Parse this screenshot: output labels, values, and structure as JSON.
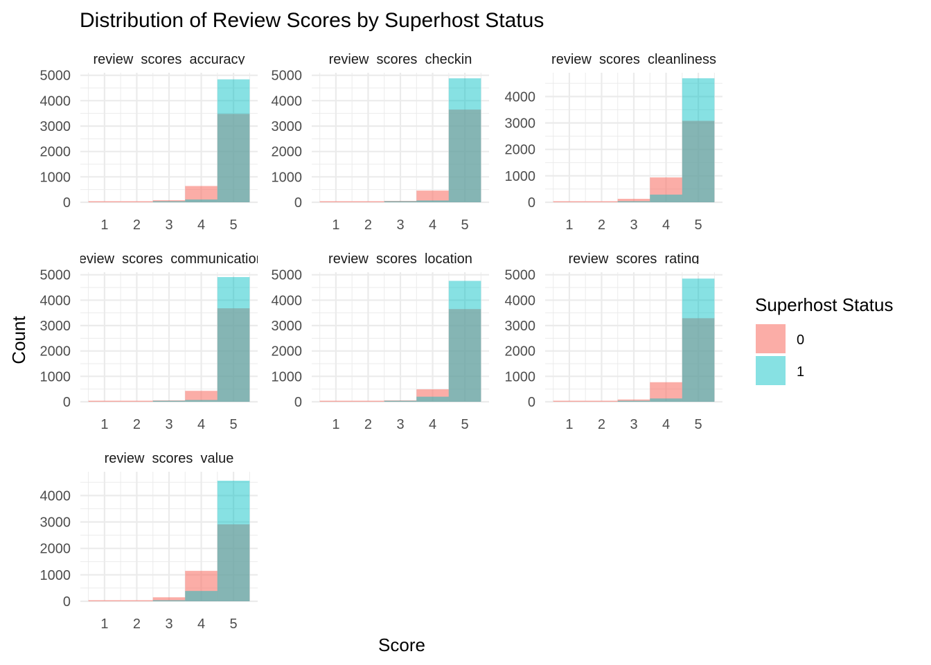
{
  "colors": {
    "group0": "#F8766D",
    "group1": "#00BFC4",
    "grid": "#EBEBEB",
    "text": "#4D4D4D",
    "title": "#000000"
  },
  "chart_data": {
    "type": "bar",
    "title": "Distribution of Review Scores by Superhost Status",
    "xlabel": "Score",
    "ylabel": "Count",
    "legend": {
      "title": "Superhost Status",
      "position": "right",
      "entries": [
        "0",
        "1"
      ]
    },
    "bar_mode": "overlaid",
    "x": [
      1,
      2,
      3,
      4,
      5
    ],
    "panels": [
      {
        "name": "review_scores_accuracy",
        "ticks": [
          0,
          1000,
          2000,
          3000,
          4000,
          5000
        ],
        "ymax": 5100,
        "series": [
          {
            "name": "0",
            "values": [
              20,
              15,
              80,
              640,
              3480
            ]
          },
          {
            "name": "1",
            "values": [
              0,
              0,
              5,
              110,
              4840
            ]
          }
        ]
      },
      {
        "name": "review_scores_checkin",
        "ticks": [
          0,
          1000,
          2000,
          3000,
          4000,
          5000
        ],
        "ymax": 5100,
        "series": [
          {
            "name": "0",
            "values": [
              15,
              10,
              55,
              460,
              3650
            ]
          },
          {
            "name": "1",
            "values": [
              0,
              0,
              5,
              70,
              4880
            ]
          }
        ]
      },
      {
        "name": "review_scores_cleanliness",
        "ticks": [
          0,
          1000,
          2000,
          3000,
          4000
        ],
        "ymax": 4900,
        "series": [
          {
            "name": "0",
            "values": [
              20,
              15,
              130,
              940,
              3080
            ]
          },
          {
            "name": "1",
            "values": [
              0,
              0,
              10,
              290,
              4690
            ]
          }
        ]
      },
      {
        "name": "review_scores_communication",
        "ticks": [
          0,
          1000,
          2000,
          3000,
          4000,
          5000
        ],
        "ymax": 5100,
        "series": [
          {
            "name": "0",
            "values": [
              15,
              5,
              55,
              430,
              3680
            ]
          },
          {
            "name": "1",
            "values": [
              0,
              0,
              5,
              70,
              4910
            ]
          }
        ]
      },
      {
        "name": "review_scores_location",
        "ticks": [
          0,
          1000,
          2000,
          3000,
          4000,
          5000
        ],
        "ymax": 5100,
        "series": [
          {
            "name": "0",
            "values": [
              10,
              5,
              55,
              490,
              3650
            ]
          },
          {
            "name": "1",
            "values": [
              0,
              0,
              5,
              200,
              4760
            ]
          }
        ]
      },
      {
        "name": "review_scores_rating",
        "ticks": [
          0,
          1000,
          2000,
          3000,
          4000,
          5000
        ],
        "ymax": 5100,
        "series": [
          {
            "name": "0",
            "values": [
              20,
              15,
              90,
              770,
              3290
            ]
          },
          {
            "name": "1",
            "values": [
              0,
              0,
              5,
              130,
              4850
            ]
          }
        ]
      },
      {
        "name": "review_scores_value",
        "ticks": [
          0,
          1000,
          2000,
          3000,
          4000
        ],
        "ymax": 4900,
        "series": [
          {
            "name": "0",
            "values": [
              25,
              15,
              150,
              1150,
              2910
            ]
          },
          {
            "name": "1",
            "values": [
              0,
              0,
              10,
              390,
              4560
            ]
          }
        ]
      }
    ]
  }
}
